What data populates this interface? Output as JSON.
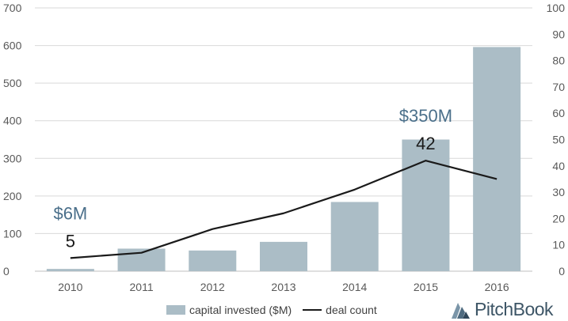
{
  "chart_data": {
    "type": "bar+line",
    "categories": [
      "2010",
      "2011",
      "2012",
      "2013",
      "2014",
      "2015",
      "2016"
    ],
    "series": [
      {
        "name": "capital invested ($M)",
        "type": "bar",
        "axis": "left",
        "color": "#abbdc6",
        "values": [
          6,
          60,
          55,
          78,
          184,
          350,
          596
        ]
      },
      {
        "name": "deal count",
        "type": "line",
        "axis": "right",
        "color": "#1a1a1a",
        "values": [
          5,
          7,
          16,
          22,
          31,
          42,
          35
        ]
      }
    ],
    "y_left": {
      "ticks": [
        "0",
        "100",
        "200",
        "300",
        "400",
        "500",
        "600",
        "700"
      ],
      "ylim": [
        0,
        700
      ]
    },
    "y_right": {
      "ticks": [
        "0",
        "10",
        "20",
        "30",
        "40",
        "50",
        "60",
        "70",
        "80",
        "90",
        "100"
      ],
      "ylim": [
        0,
        100
      ]
    },
    "annotations": [
      {
        "money": "$6M",
        "count": "5",
        "index": 0
      },
      {
        "money": "$350M",
        "count": "42",
        "index": 5
      }
    ],
    "grid": true,
    "legend": "bottom"
  },
  "legend": {
    "bar_label": "capital invested ($M)",
    "line_label": "deal count"
  },
  "brand": {
    "name": "PitchBook",
    "color": "#3d5566"
  }
}
